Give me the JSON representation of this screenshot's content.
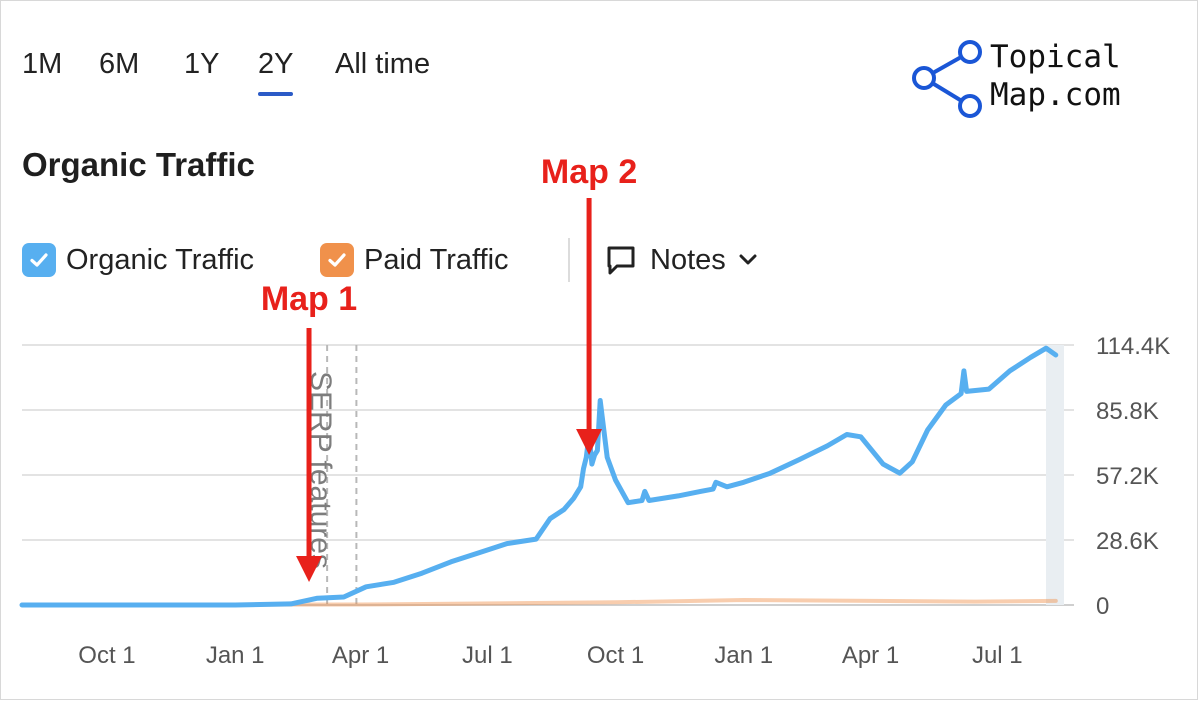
{
  "range_tabs": [
    {
      "label": "1M",
      "active": false
    },
    {
      "label": "6M",
      "active": false
    },
    {
      "label": "1Y",
      "active": false
    },
    {
      "label": "2Y",
      "active": true
    },
    {
      "label": "All time",
      "active": false
    }
  ],
  "logo": {
    "line1": "Topical",
    "line2": "Map.com",
    "color": "#1a56d6"
  },
  "title": "Organic Traffic",
  "legend": {
    "organic": {
      "label": "Organic Traffic",
      "color": "#57aff0",
      "checked": true
    },
    "paid": {
      "label": "Paid Traffic",
      "color": "#f0914b",
      "checked": true
    }
  },
  "notes": {
    "label": "Notes"
  },
  "annotations": [
    {
      "label": "Map 1",
      "date": "2023-02-23",
      "color": "#e8211b"
    },
    {
      "label": "Map 2",
      "date": "2023-09-12",
      "color": "#e8211b"
    }
  ],
  "marker_label": "SERP features",
  "chart_data": {
    "type": "line",
    "x_tick_labels": [
      "Oct 1",
      "Jan 1",
      "Apr 1",
      "Jul 1",
      "Oct 1",
      "Jan 1",
      "Apr 1",
      "Jul 1"
    ],
    "x_tick_dates": [
      "2022-10-01",
      "2023-01-01",
      "2023-04-01",
      "2023-07-01",
      "2023-10-01",
      "2024-01-01",
      "2024-04-01",
      "2024-07-01"
    ],
    "xlim": [
      "2022-08-01",
      "2024-08-15"
    ],
    "y_tick_labels": [
      "0",
      "28.6K",
      "57.2K",
      "85.8K",
      "114.4K"
    ],
    "y_ticks": [
      0,
      28600,
      57200,
      85800,
      114400
    ],
    "ylim": [
      0,
      114400
    ],
    "y_axis_side": "right",
    "grid": true,
    "vertical_markers": [
      "2023-03-08",
      "2023-03-29"
    ],
    "series": [
      {
        "name": "Organic Traffic",
        "color": "#57aff0",
        "x": [
          "2022-08-01",
          "2022-10-01",
          "2023-01-01",
          "2023-02-10",
          "2023-03-01",
          "2023-03-20",
          "2023-04-05",
          "2023-04-25",
          "2023-05-15",
          "2023-06-05",
          "2023-06-25",
          "2023-07-15",
          "2023-08-05",
          "2023-08-15",
          "2023-08-25",
          "2023-09-01",
          "2023-09-06",
          "2023-09-08",
          "2023-09-10",
          "2023-09-12",
          "2023-09-14",
          "2023-09-16",
          "2023-09-18",
          "2023-09-20",
          "2023-09-25",
          "2023-10-01",
          "2023-10-10",
          "2023-10-20",
          "2023-10-22",
          "2023-10-25",
          "2023-11-15",
          "2023-12-01",
          "2023-12-10",
          "2023-12-12",
          "2023-12-20",
          "2024-01-01",
          "2024-01-20",
          "2024-02-10",
          "2024-03-01",
          "2024-03-15",
          "2024-03-25",
          "2024-04-10",
          "2024-04-22",
          "2024-05-01",
          "2024-05-12",
          "2024-05-25",
          "2024-06-05",
          "2024-06-07",
          "2024-06-09",
          "2024-06-25",
          "2024-07-10",
          "2024-07-25",
          "2024-08-05",
          "2024-08-12"
        ],
        "y": [
          0,
          0,
          0,
          500,
          3000,
          3500,
          8000,
          10000,
          14000,
          19000,
          23000,
          27000,
          29000,
          38000,
          42000,
          47000,
          52000,
          60000,
          65000,
          75000,
          62000,
          66000,
          68000,
          90000,
          65000,
          55000,
          45000,
          46000,
          50000,
          46000,
          48000,
          50000,
          51000,
          54000,
          52000,
          54000,
          58000,
          64000,
          70000,
          75000,
          74000,
          62000,
          58000,
          63000,
          77000,
          88000,
          93000,
          103000,
          94000,
          95000,
          103000,
          109000,
          113000,
          110000
        ]
      },
      {
        "name": "Paid Traffic",
        "color": "#f0914b",
        "x": [
          "2022-08-01",
          "2023-04-01",
          "2023-10-01",
          "2024-01-01",
          "2024-06-15",
          "2024-08-12"
        ],
        "y": [
          0,
          200,
          1200,
          2200,
          1500,
          1800
        ]
      }
    ]
  }
}
